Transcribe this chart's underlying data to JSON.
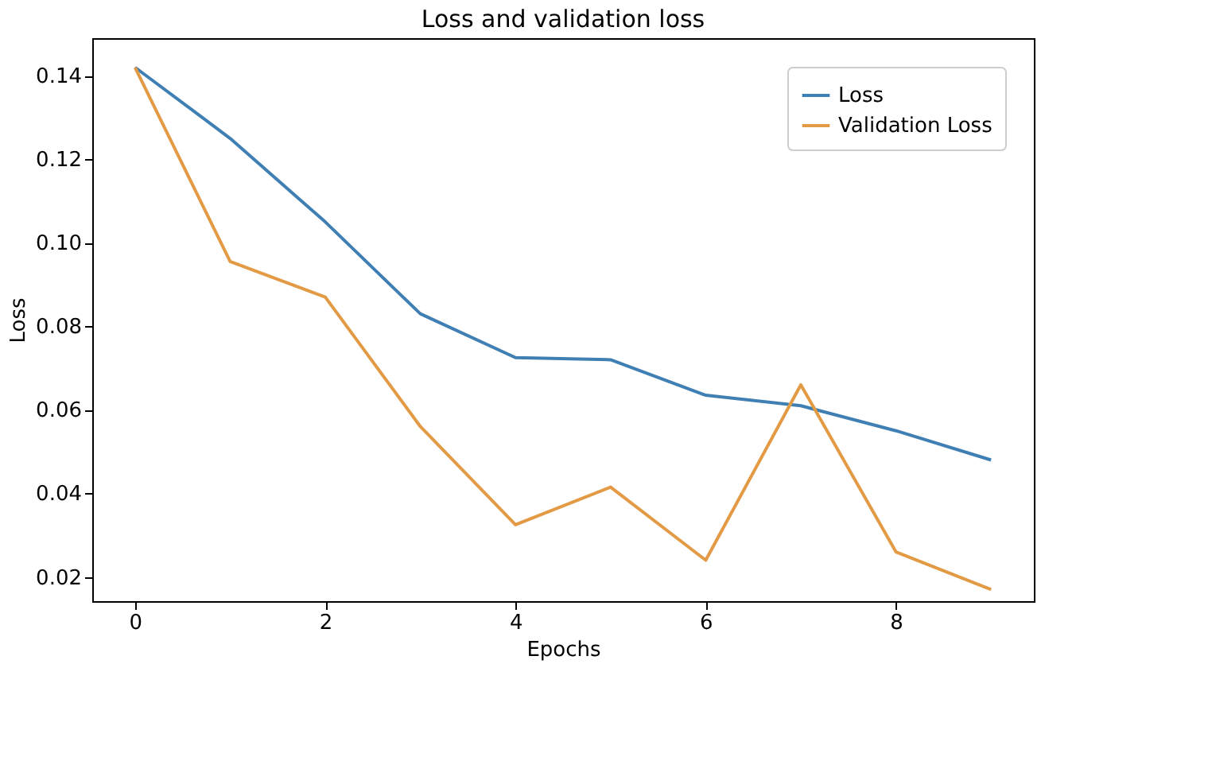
{
  "chart_data": {
    "type": "line",
    "title": "Loss and validation loss",
    "xlabel": "Epochs",
    "ylabel": "Loss",
    "x": [
      0,
      1,
      2,
      3,
      4,
      5,
      6,
      7,
      8,
      9
    ],
    "series": [
      {
        "name": "Loss",
        "color": "#3f7fb3",
        "values": [
          0.142,
          0.125,
          0.105,
          0.083,
          0.0725,
          0.072,
          0.0635,
          0.061,
          0.055,
          0.048
        ]
      },
      {
        "name": "Validation Loss",
        "color": "#e39a45",
        "values": [
          0.142,
          0.0955,
          0.087,
          0.056,
          0.0325,
          0.0415,
          0.024,
          0.066,
          0.026,
          0.017
        ]
      }
    ],
    "xlim": [
      -0.45,
      9.45
    ],
    "xticks": [
      0,
      2,
      4,
      6,
      8
    ],
    "ylim": [
      0.0142,
      0.149
    ],
    "yticks": [
      0.02,
      0.04,
      0.06,
      0.08,
      {
        "value": 0.1,
        "label": "0.10"
      },
      0.12,
      0.14
    ],
    "grid": false,
    "legend": "top right",
    "marker": "none",
    "line_style": "solid"
  }
}
